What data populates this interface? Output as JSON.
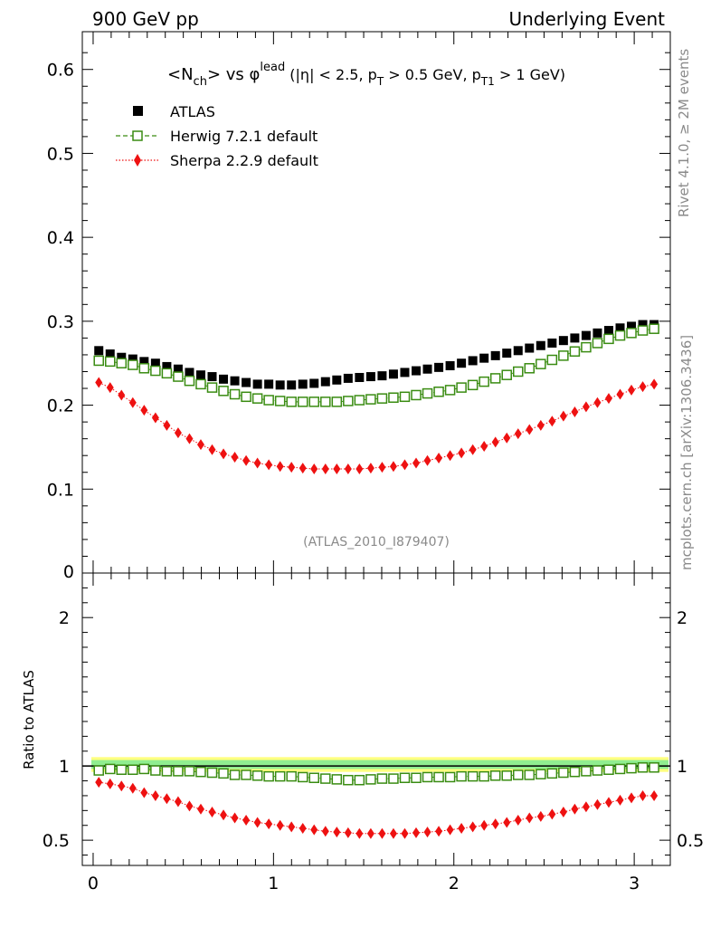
{
  "header": {
    "left": "900 GeV pp",
    "right": "Underlying Event"
  },
  "side": {
    "rivet": "Rivet 4.1.0, ≥ 2M events",
    "mcplots": "mcplots.cern.ch [arXiv:1306.3436]"
  },
  "watermark": "(ATLAS_2010_I879407)",
  "title": {
    "p1": "<N",
    "p1sub": "ch",
    "p2": "> vs φ",
    "p2sup": "lead",
    "p3": " (|η| < 2.5, p",
    "p3sub": "T",
    "p4": " > 0.5 GeV, p",
    "p4sub": "T1",
    "p5": " > 1 GeV)"
  },
  "colors": {
    "atlas": "#000000",
    "herwig": "#3a8c12",
    "sherpa": "#ee1111",
    "band_inner": "#90ee90",
    "band_outer": "#ffff80"
  },
  "chart_data": {
    "type": "scatter",
    "x": [
      0.0314,
      0.0942,
      0.1571,
      0.2199,
      0.2827,
      0.3456,
      0.4084,
      0.4712,
      0.5341,
      0.5969,
      0.6597,
      0.7226,
      0.7854,
      0.8482,
      0.9111,
      0.9739,
      1.0367,
      1.0996,
      1.1624,
      1.2252,
      1.2881,
      1.3509,
      1.4137,
      1.4765,
      1.5394,
      1.6022,
      1.665,
      1.7279,
      1.7907,
      1.8535,
      1.9164,
      1.9792,
      2.042,
      2.1049,
      2.1677,
      2.2305,
      2.2934,
      2.3562,
      2.419,
      2.4819,
      2.5447,
      2.6075,
      2.6704,
      2.7332,
      2.796,
      2.8588,
      2.9217,
      2.9845,
      3.0473,
      3.1102
    ],
    "series": [
      {
        "name": "ATLAS",
        "marker": "square-filled",
        "values": [
          0.265,
          0.261,
          0.257,
          0.255,
          0.252,
          0.25,
          0.246,
          0.243,
          0.239,
          0.236,
          0.234,
          0.231,
          0.229,
          0.227,
          0.225,
          0.225,
          0.224,
          0.224,
          0.225,
          0.226,
          0.228,
          0.23,
          0.232,
          0.233,
          0.234,
          0.235,
          0.237,
          0.239,
          0.241,
          0.243,
          0.245,
          0.247,
          0.25,
          0.253,
          0.256,
          0.259,
          0.262,
          0.265,
          0.268,
          0.271,
          0.274,
          0.277,
          0.28,
          0.283,
          0.286,
          0.289,
          0.292,
          0.294,
          0.296,
          0.296
        ]
      },
      {
        "name": "Herwig 7.2.1 default",
        "marker": "square-open",
        "line": "dashed",
        "values": [
          0.253,
          0.252,
          0.25,
          0.248,
          0.244,
          0.241,
          0.238,
          0.234,
          0.229,
          0.225,
          0.221,
          0.217,
          0.213,
          0.21,
          0.208,
          0.206,
          0.205,
          0.204,
          0.204,
          0.204,
          0.204,
          0.204,
          0.205,
          0.206,
          0.207,
          0.208,
          0.209,
          0.21,
          0.212,
          0.214,
          0.216,
          0.218,
          0.221,
          0.224,
          0.228,
          0.232,
          0.236,
          0.24,
          0.244,
          0.249,
          0.254,
          0.259,
          0.264,
          0.269,
          0.274,
          0.279,
          0.283,
          0.286,
          0.289,
          0.291
        ]
      },
      {
        "name": "Sherpa 2.2.9 default",
        "marker": "diamond-filled",
        "line": "dotted",
        "values": [
          0.227,
          0.221,
          0.212,
          0.203,
          0.194,
          0.185,
          0.176,
          0.167,
          0.16,
          0.153,
          0.147,
          0.142,
          0.138,
          0.134,
          0.131,
          0.129,
          0.127,
          0.126,
          0.125,
          0.124,
          0.124,
          0.124,
          0.124,
          0.124,
          0.125,
          0.126,
          0.127,
          0.129,
          0.131,
          0.134,
          0.137,
          0.14,
          0.143,
          0.147,
          0.151,
          0.156,
          0.161,
          0.166,
          0.171,
          0.176,
          0.181,
          0.187,
          0.192,
          0.198,
          0.203,
          0.208,
          0.213,
          0.218,
          0.222,
          0.225
        ]
      }
    ],
    "ratio": [
      {
        "name": "Herwig 7.2.1 default",
        "values": [
          0.97,
          0.98,
          0.975,
          0.975,
          0.98,
          0.97,
          0.965,
          0.965,
          0.965,
          0.96,
          0.955,
          0.95,
          0.94,
          0.94,
          0.935,
          0.93,
          0.93,
          0.93,
          0.925,
          0.92,
          0.915,
          0.91,
          0.905,
          0.905,
          0.91,
          0.915,
          0.915,
          0.92,
          0.92,
          0.925,
          0.925,
          0.925,
          0.93,
          0.93,
          0.93,
          0.935,
          0.935,
          0.94,
          0.94,
          0.945,
          0.95,
          0.955,
          0.96,
          0.965,
          0.97,
          0.975,
          0.98,
          0.985,
          0.99,
          0.99
        ]
      },
      {
        "name": "Sherpa 2.2.9 default",
        "values": [
          0.89,
          0.88,
          0.865,
          0.85,
          0.82,
          0.8,
          0.78,
          0.76,
          0.73,
          0.71,
          0.69,
          0.67,
          0.65,
          0.635,
          0.62,
          0.61,
          0.6,
          0.59,
          0.58,
          0.57,
          0.56,
          0.555,
          0.55,
          0.545,
          0.545,
          0.545,
          0.545,
          0.545,
          0.55,
          0.555,
          0.56,
          0.57,
          0.58,
          0.59,
          0.6,
          0.61,
          0.62,
          0.635,
          0.65,
          0.66,
          0.675,
          0.69,
          0.71,
          0.725,
          0.74,
          0.755,
          0.77,
          0.785,
          0.8,
          0.8
        ]
      }
    ],
    "ratio_band": {
      "inner": [
        0.98,
        1.04
      ],
      "outer": [
        0.96,
        1.06
      ]
    },
    "main_axis": {
      "ylim": [
        0,
        0.645
      ],
      "yticks": [
        0,
        0.1,
        0.2,
        0.3,
        0.4,
        0.5,
        0.6
      ],
      "ytick_labels": [
        "0",
        "0.1",
        "0.2",
        "0.3",
        "0.4",
        "0.5",
        "0.6"
      ]
    },
    "ratio_axis": {
      "ylim": [
        0.33,
        2.3
      ],
      "yticks": [
        0.5,
        1,
        2
      ],
      "ytick_labels": [
        "0.5",
        "1",
        "2"
      ],
      "ylabel": "Ratio to ATLAS"
    },
    "x_axis": {
      "xlim": [
        -0.06,
        3.2
      ],
      "xticks": [
        0,
        1,
        2,
        3
      ],
      "xtick_labels": [
        "0",
        "1",
        "2",
        "3"
      ]
    },
    "legend": {
      "position": "top-left",
      "entries": [
        "ATLAS",
        "Herwig 7.2.1 default",
        "Sherpa 2.2.9 default"
      ]
    }
  }
}
